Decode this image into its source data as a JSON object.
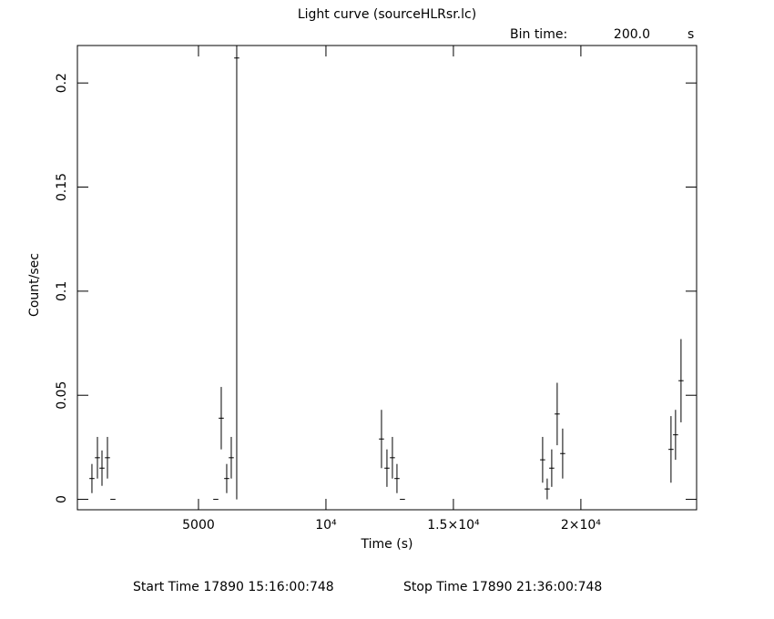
{
  "chart_data": {
    "type": "errorbar",
    "title": "Light curve (sourceHLRsr.lc)",
    "bin_time_label": "Bin time:",
    "bin_time": {
      "value": 200,
      "label": "200.0"
    },
    "bin_time_unit": "s",
    "x_label": "Time (s)",
    "y_label": "Count/sec",
    "start_time": "Start Time 17890 15:16:00:748",
    "stop_time": "Stop Time 17890 21:36:00:748",
    "xlim": [
      250,
      24540
    ],
    "ylim": [
      -0.005,
      0.218
    ],
    "xticks": [
      5000,
      {
        "value": 10000,
        "label": "10⁴"
      },
      {
        "value": 15000,
        "label": "1.5×10⁴"
      },
      {
        "value": 20000,
        "label": "2×10⁴"
      }
    ],
    "yticks": [
      0,
      0.05,
      0.1,
      0.15,
      0.2
    ],
    "series": [
      {
        "color": "#000000",
        "x": [
          820,
          1036,
          1214,
          1429,
          1643,
          5679,
          5893,
          6107,
          6286,
          6500,
          12179,
          12393,
          12607,
          12786,
          13000,
          18500,
          18679,
          18857,
          19071,
          19286,
          23536,
          23714,
          23929
        ],
        "values": [
          0.01,
          0.02,
          0.015,
          0.02,
          0,
          0,
          0.039,
          0.01,
          0.02,
          0.212,
          0.029,
          0.015,
          0.02,
          0.01,
          0,
          0.019,
          0.005,
          0.015,
          0.041,
          0.022,
          0.024,
          0.031,
          0.057
        ],
        "errors": [
          0.007,
          0.01,
          0.0085,
          0.01,
          0,
          0,
          0.015,
          0.007,
          0.01,
          0.212,
          0.014,
          0.009,
          0.01,
          0.007,
          0,
          0.011,
          0.005,
          0.009,
          0.015,
          0.012,
          0.016,
          0.012,
          0.02
        ]
      }
    ]
  }
}
